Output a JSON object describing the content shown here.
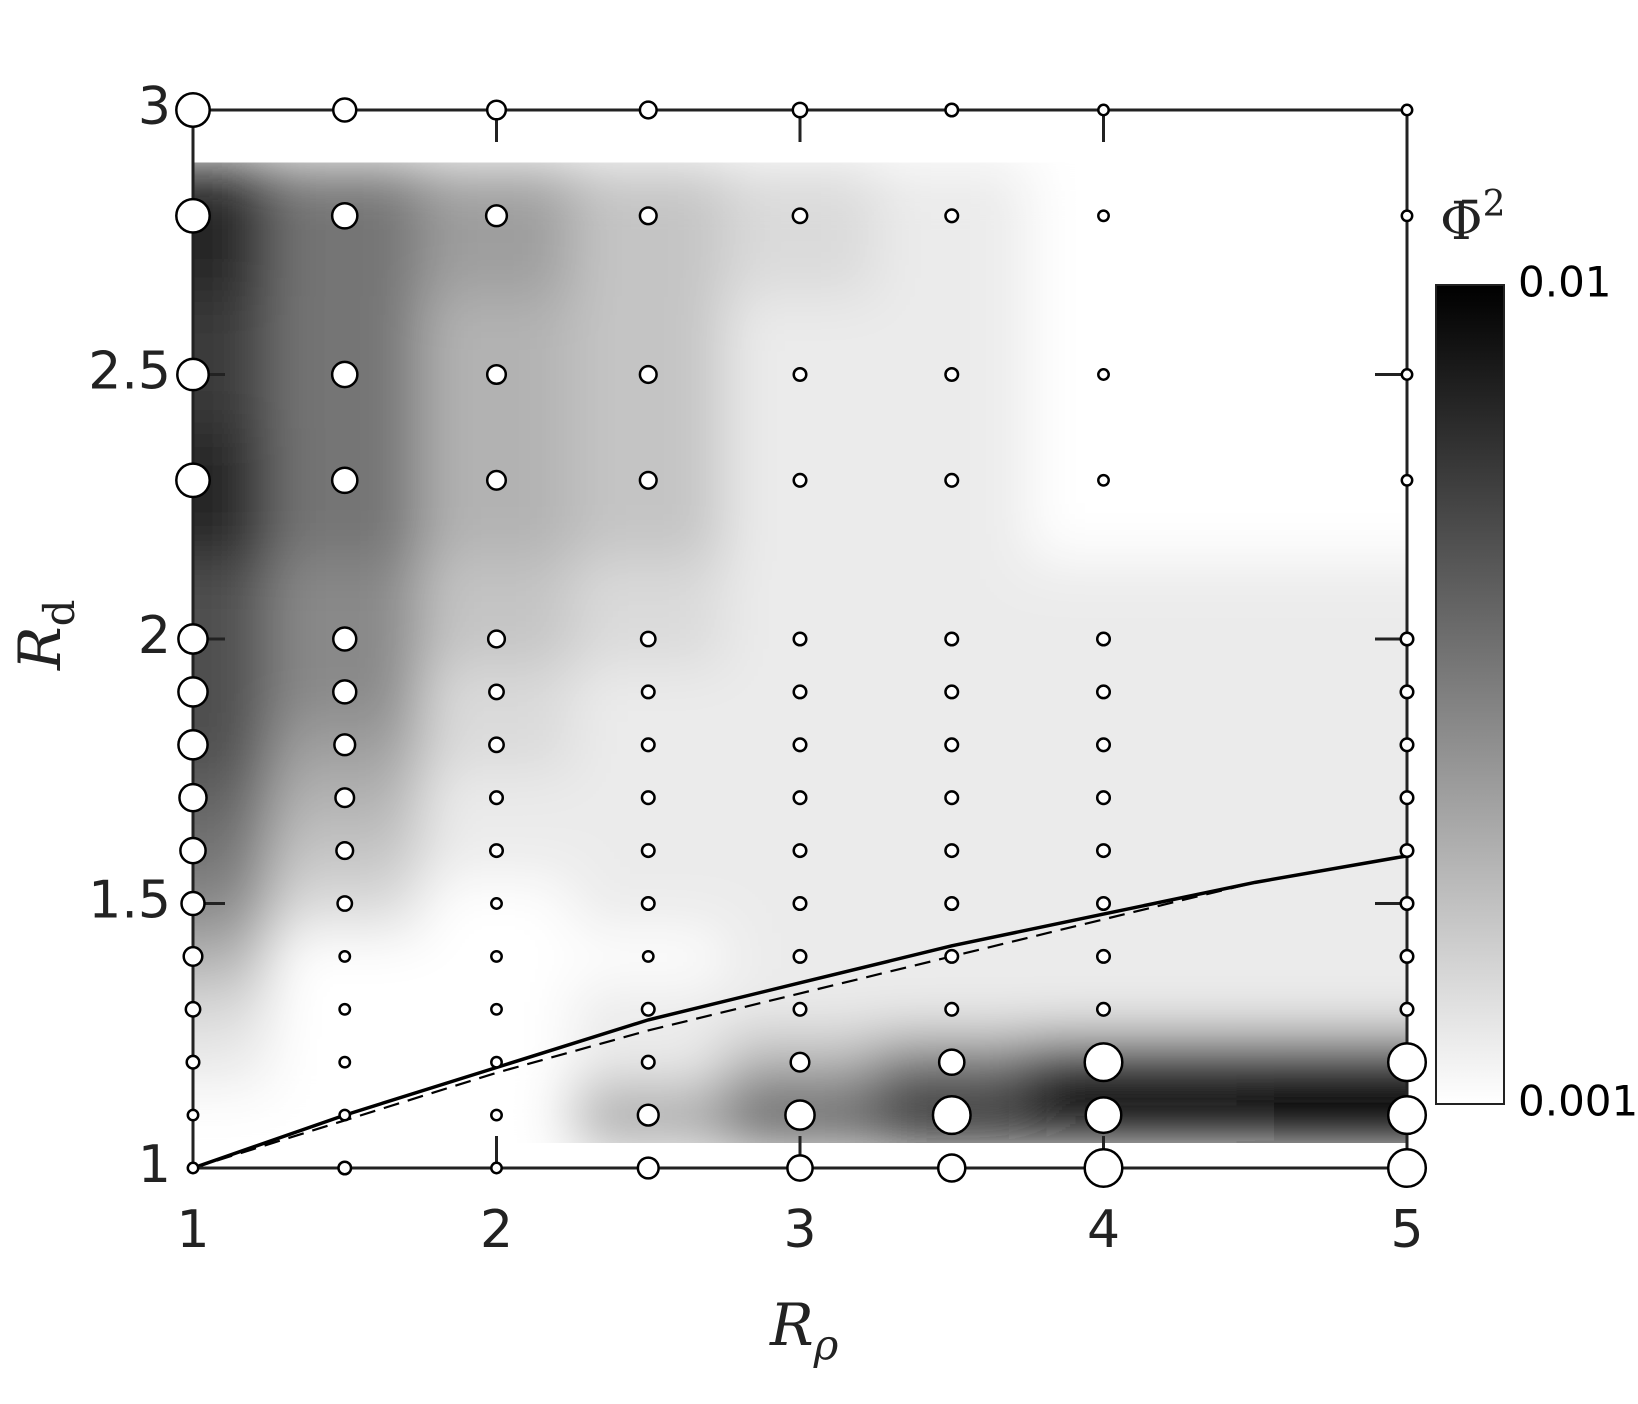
{
  "chart_data": {
    "type": "bubble-heatmap",
    "xlabel": "R",
    "xlabel_sub": "ρ",
    "ylabel": "R",
    "ylabel_sub": "d",
    "colorbar_label": "Φ̄",
    "colorbar_label_sup": "2",
    "x": [
      1,
      1.5,
      2,
      2.5,
      3,
      3.5,
      4,
      5
    ],
    "y": [
      1,
      1.1,
      1.2,
      1.3,
      1.4,
      1.5,
      1.6,
      1.7,
      1.8,
      1.9,
      2,
      2.3,
      2.5,
      2.8,
      3
    ],
    "z": [
      [
        0.001,
        0.0012,
        0.001,
        0.0024,
        0.0035,
        0.0041,
        0.01,
        0.01
      ],
      [
        0.001,
        0.001,
        0.001,
        0.0024,
        0.0049,
        0.01,
        0.0084,
        0.01
      ],
      [
        0.0012,
        0.001,
        0.001,
        0.0012,
        0.002,
        0.0035,
        0.01,
        0.01
      ],
      [
        0.0014,
        0.001,
        0.001,
        0.0012,
        0.0012,
        0.0012,
        0.0012,
        0.0012
      ],
      [
        0.002,
        0.001,
        0.001,
        0.001,
        0.0012,
        0.0012,
        0.0012,
        0.0012
      ],
      [
        0.0029,
        0.0014,
        0.001,
        0.0012,
        0.0012,
        0.0012,
        0.0012,
        0.0012
      ],
      [
        0.0035,
        0.0017,
        0.0012,
        0.0012,
        0.0012,
        0.0012,
        0.0012,
        0.0012
      ],
      [
        0.0041,
        0.002,
        0.0012,
        0.0012,
        0.0012,
        0.0012,
        0.0012,
        0.0012
      ],
      [
        0.0049,
        0.0024,
        0.0014,
        0.0012,
        0.0012,
        0.0012,
        0.0012,
        0.0012
      ],
      [
        0.0049,
        0.0029,
        0.0014,
        0.0012,
        0.0012,
        0.0012,
        0.0012,
        0.0012
      ],
      [
        0.0049,
        0.0029,
        0.0017,
        0.0014,
        0.0012,
        0.0012,
        0.0012,
        0.0012
      ],
      [
        0.007,
        0.0035,
        0.002,
        0.0017,
        0.0012,
        0.0012,
        0.001,
        0.001
      ],
      [
        0.0059,
        0.0035,
        0.002,
        0.0017,
        0.0012,
        0.0012,
        0.001,
        0.001
      ],
      [
        0.007,
        0.0035,
        0.0024,
        0.0017,
        0.0014,
        0.0012,
        0.001,
        0.001
      ],
      [
        0.007,
        0.0029,
        0.002,
        0.0017,
        0.0014,
        0.0012,
        0.001,
        0.001
      ]
    ],
    "zlim": [
      0.001,
      0.01
    ],
    "zticks": [
      0.001,
      0.01
    ],
    "zlog": true,
    "xlim": [
      1,
      5
    ],
    "xticks": [
      1,
      2,
      3,
      4,
      5
    ],
    "ylim": [
      1,
      3
    ],
    "yticks": [
      1,
      1.5,
      2,
      2.5,
      3
    ],
    "lines": [
      {
        "x": [
          1,
          1.5,
          2,
          2.5,
          3,
          3.5,
          4,
          4.5,
          5
        ],
        "y": [
          1,
          1.1,
          1.19,
          1.28,
          1.35,
          1.42,
          1.48,
          1.54,
          1.59
        ],
        "linestyle": "solid",
        "color": "#000000"
      },
      {
        "x": [
          1,
          1.5,
          2,
          2.5,
          3,
          3.5,
          4,
          4.5,
          5
        ],
        "y": [
          1,
          1.09,
          1.18,
          1.26,
          1.33,
          1.4,
          1.47,
          1.54,
          1.59
        ],
        "linestyle": "dashed",
        "color": "#000000"
      }
    ]
  }
}
